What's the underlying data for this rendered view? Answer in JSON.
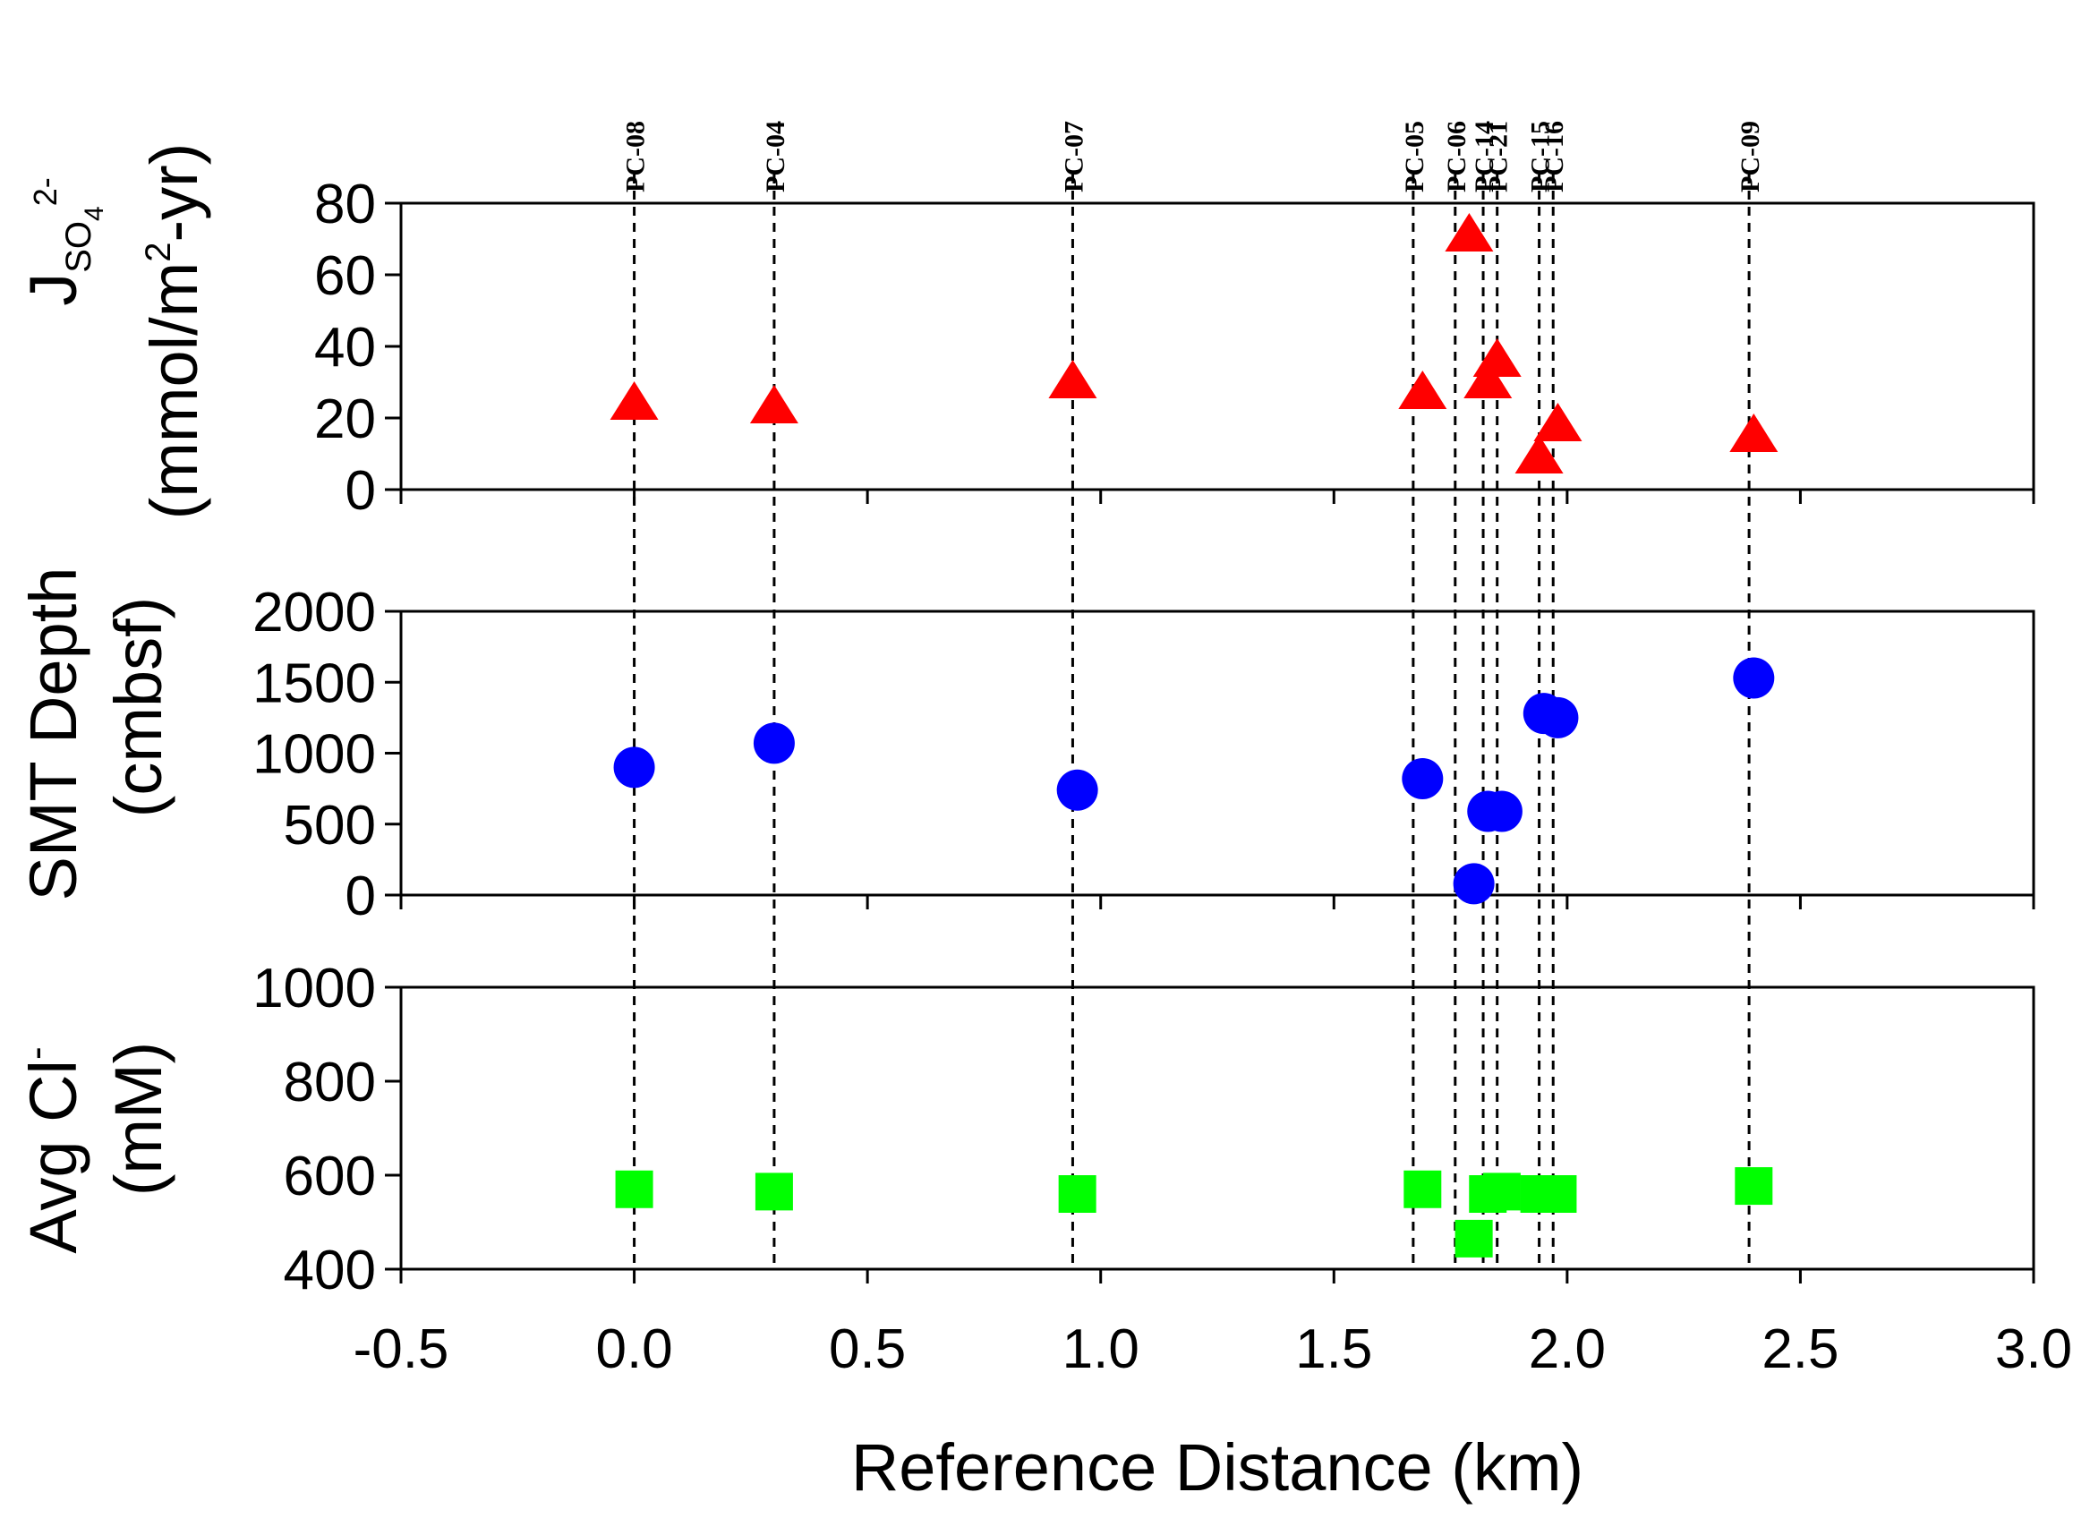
{
  "chart_data": {
    "type": "scatter",
    "layout": "three vertically stacked panels sharing the x axis",
    "xlabel": "Reference Distance (km)",
    "xlim": [
      -0.5,
      3.0
    ],
    "x_ticks": [
      "-0.5",
      "0.0",
      "0.5",
      "1.0",
      "1.5",
      "2.0",
      "2.5",
      "3.0"
    ],
    "x_tick_values": [
      -0.5,
      0.0,
      0.5,
      1.0,
      1.5,
      2.0,
      2.5,
      3.0
    ],
    "cores": [
      {
        "name": "PC-08",
        "x": 0.0
      },
      {
        "name": "PC-04",
        "x": 0.3
      },
      {
        "name": "PC-07",
        "x": 0.94
      },
      {
        "name": "PC-05",
        "x": 1.67
      },
      {
        "name": "PC-06",
        "x": 1.76
      },
      {
        "name": "PC-14",
        "x": 1.82
      },
      {
        "name": "PC-21",
        "x": 1.85
      },
      {
        "name": "PC-15",
        "x": 1.94
      },
      {
        "name": "PC-16",
        "x": 1.97
      },
      {
        "name": "PC-09",
        "x": 2.39
      }
    ],
    "panels": [
      {
        "id": "sulfate-flux",
        "ylabel_main": "J",
        "ylabel_sub": "SO",
        "ylabel_sub_num": "4",
        "ylabel_sup": "2-",
        "ylabel_line2": "(mmol/m",
        "ylabel_line2_sup": "2",
        "ylabel_line2_end": "-yr)",
        "ylim": [
          0,
          80
        ],
        "y_ticks": [
          "0",
          "20",
          "40",
          "60",
          "80"
        ],
        "y_tick_values": [
          0,
          20,
          40,
          60,
          80
        ],
        "marker": "triangle",
        "color": "#ff0000",
        "series": [
          {
            "x": 0.0,
            "y": 24
          },
          {
            "x": 0.3,
            "y": 23
          },
          {
            "x": 0.94,
            "y": 30
          },
          {
            "x": 1.69,
            "y": 27
          },
          {
            "x": 1.79,
            "y": 71
          },
          {
            "x": 1.83,
            "y": 30
          },
          {
            "x": 1.85,
            "y": 36
          },
          {
            "x": 1.94,
            "y": 9
          },
          {
            "x": 1.98,
            "y": 18
          },
          {
            "x": 2.4,
            "y": 15
          }
        ]
      },
      {
        "id": "smt-depth",
        "ylabel_line1": "SMT Depth",
        "ylabel_line2": "(cmbsf)",
        "ylim": [
          0,
          2000
        ],
        "y_ticks": [
          "0",
          "500",
          "1000",
          "1500",
          "2000"
        ],
        "y_tick_values": [
          0,
          500,
          1000,
          1500,
          2000
        ],
        "marker": "circle",
        "color": "#0000ff",
        "series": [
          {
            "x": 0.0,
            "y": 900
          },
          {
            "x": 0.3,
            "y": 1070
          },
          {
            "x": 0.95,
            "y": 740
          },
          {
            "x": 1.69,
            "y": 820
          },
          {
            "x": 1.8,
            "y": 80
          },
          {
            "x": 1.83,
            "y": 590
          },
          {
            "x": 1.86,
            "y": 590
          },
          {
            "x": 1.95,
            "y": 1280
          },
          {
            "x": 1.98,
            "y": 1250
          },
          {
            "x": 2.4,
            "y": 1530
          }
        ]
      },
      {
        "id": "avg-chloride",
        "ylabel_line1": "Avg Cl",
        "ylabel_sup": "-",
        "ylabel_line2": "(mM)",
        "ylim": [
          400,
          1000
        ],
        "y_ticks": [
          "400",
          "600",
          "800",
          "1000"
        ],
        "y_tick_values": [
          400,
          600,
          800,
          1000
        ],
        "marker": "square",
        "color": "#00ff00",
        "series": [
          {
            "x": 0.0,
            "y": 570
          },
          {
            "x": 0.3,
            "y": 565
          },
          {
            "x": 0.95,
            "y": 560
          },
          {
            "x": 1.69,
            "y": 570
          },
          {
            "x": 1.8,
            "y": 465
          },
          {
            "x": 1.83,
            "y": 560
          },
          {
            "x": 1.86,
            "y": 565
          },
          {
            "x": 1.94,
            "y": 560
          },
          {
            "x": 1.98,
            "y": 560
          },
          {
            "x": 2.4,
            "y": 577
          }
        ]
      }
    ]
  }
}
